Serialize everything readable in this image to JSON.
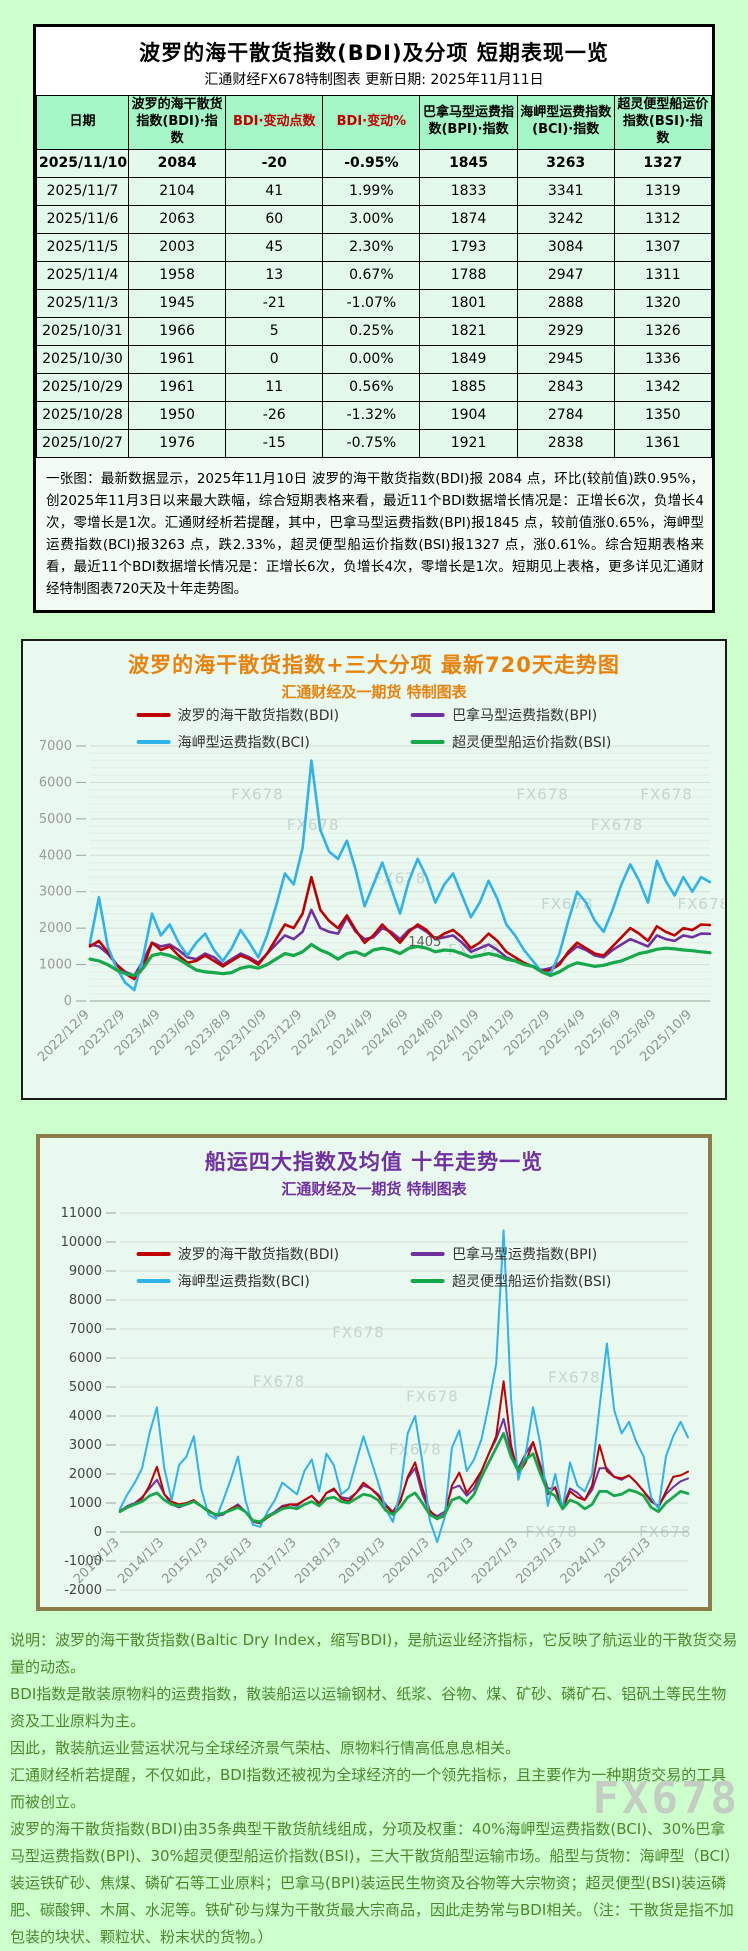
{
  "header": {
    "title": "波罗的海干散货指数(BDI)及分项 短期表现一览",
    "subtitle": "汇通财经FX678特制图表    更新日期: 2025年11月11日"
  },
  "colors": {
    "page_bg": "#ccffcc",
    "table_header_bg": "#a4f6c6",
    "red_text": "#c00000",
    "title_orange": "#e8820c",
    "title_purple": "#7030a0",
    "bdi_red": "#c00000",
    "bpi_purple": "#7030a0",
    "bci_cyan": "#2fb3e8",
    "bsi_green": "#17a84b"
  },
  "table": {
    "headers": [
      "日期",
      "波罗的海干散货指数(BDI)·指数",
      "BDI·变动点数",
      "BDI·变动%",
      "巴拿马型运费指数(BPI)·指数",
      "海岬型运费指数(BCI)·指数",
      "超灵便型船运价指数(BSI)·指数"
    ],
    "rows": [
      [
        "2025/11/10",
        "2084",
        "-20",
        "-0.95%",
        "1845",
        "3263",
        "1327"
      ],
      [
        "2025/11/7",
        "2104",
        "41",
        "1.99%",
        "1833",
        "3341",
        "1319"
      ],
      [
        "2025/11/6",
        "2063",
        "60",
        "3.00%",
        "1874",
        "3242",
        "1312"
      ],
      [
        "2025/11/5",
        "2003",
        "45",
        "2.30%",
        "1793",
        "3084",
        "1307"
      ],
      [
        "2025/11/4",
        "1958",
        "13",
        "0.67%",
        "1788",
        "2947",
        "1311"
      ],
      [
        "2025/11/3",
        "1945",
        "-21",
        "-1.07%",
        "1801",
        "2888",
        "1320"
      ],
      [
        "2025/10/31",
        "1966",
        "5",
        "0.25%",
        "1821",
        "2929",
        "1326"
      ],
      [
        "2025/10/30",
        "1961",
        "0",
        "0.00%",
        "1849",
        "2945",
        "1336"
      ],
      [
        "2025/10/29",
        "1961",
        "11",
        "0.56%",
        "1885",
        "2843",
        "1342"
      ],
      [
        "2025/10/28",
        "1950",
        "-26",
        "-1.32%",
        "1904",
        "2784",
        "1350"
      ],
      [
        "2025/10/27",
        "1976",
        "-15",
        "-0.75%",
        "1921",
        "2838",
        "1361"
      ]
    ],
    "summary": "一张图：最新数据显示，2025年11月10日 波罗的海干散货指数(BDI)报 2084 点，环比(较前值)跌0.95%，创2025年11月3日以来最大跌幅，综合短期表格来看，最近11个BDI数据增长情况是：正增长6次，负增长4次，零增长是1次。汇通财经析若提醒，其中，巴拿马型运费指数(BPI)报1845 点，较前值涨0.65%，海岬型运费指数(BCI)报3263 点，跌2.33%，超灵便型船运价指数(BSI)报1327 点，涨0.61%。综合短期表格来看，最近11个BDI数据增长情况是：正增长6次，负增长4次，零增长是1次。短期见上表格，更多详见汇通财经特制图表720天及十年走势图。"
  },
  "chart_data": [
    {
      "type": "line",
      "title": "波罗的海干散货指数+三大分项 最新720天走势图",
      "subtitle": "汇通财经及一期货 特制图表",
      "watermark": "FX678",
      "grid": true,
      "legend_position": "top",
      "ylim": [
        0,
        7000
      ],
      "ytick_step": 1000,
      "x_labels": [
        "2022/12/9",
        "2023/2/9",
        "2023/4/9",
        "2023/6/9",
        "2023/8/9",
        "2023/10/9",
        "2023/12/9",
        "2024/2/9",
        "2024/4/9",
        "2024/6/9",
        "2024/8/9",
        "2024/10/9",
        "2024/12/9",
        "2025/2/9",
        "2025/4/9",
        "2025/6/9",
        "2025/8/9",
        "2025/10/9"
      ],
      "annotations": [
        {
          "text": "1405",
          "fx": 0.54,
          "value": 1405
        }
      ],
      "series": [
        {
          "name": "波罗的海干散货指数(BDI)",
          "color": "#c00000",
          "values": [
            1500,
            1650,
            1350,
            1000,
            750,
            600,
            900,
            1600,
            1400,
            1500,
            1250,
            1050,
            1100,
            1250,
            1100,
            950,
            1100,
            1250,
            1150,
            1000,
            1300,
            1700,
            2100,
            2000,
            2400,
            3400,
            2500,
            2200,
            2000,
            2350,
            1950,
            1600,
            1800,
            2100,
            1850,
            1600,
            1900,
            2100,
            1950,
            1700,
            1850,
            1950,
            1750,
            1450,
            1600,
            1850,
            1650,
            1350,
            1200,
            1050,
            950,
            800,
            850,
            1000,
            1350,
            1600,
            1450,
            1300,
            1250,
            1500,
            1750,
            2000,
            1850,
            1650,
            2050,
            1900,
            1800,
            2000,
            1950,
            2100,
            2084
          ]
        },
        {
          "name": "巴拿马型运费指数(BPI)",
          "color": "#7030a0",
          "values": [
            1550,
            1500,
            1300,
            1000,
            800,
            700,
            1100,
            1600,
            1500,
            1550,
            1400,
            1200,
            1150,
            1300,
            1200,
            1000,
            1150,
            1300,
            1200,
            1050,
            1300,
            1550,
            1800,
            1700,
            1900,
            2500,
            2000,
            1900,
            1850,
            2300,
            1900,
            1700,
            1750,
            2000,
            1900,
            1700,
            1950,
            2050,
            1900,
            1700,
            1750,
            1800,
            1600,
            1350,
            1450,
            1550,
            1400,
            1200,
            1100,
            1000,
            950,
            850,
            900,
            1050,
            1300,
            1500,
            1400,
            1250,
            1200,
            1400,
            1550,
            1700,
            1600,
            1500,
            1800,
            1700,
            1650,
            1800,
            1750,
            1850,
            1845
          ]
        },
        {
          "name": "海岬型运费指数(BCI)",
          "color": "#2fb3e8",
          "values": [
            1600,
            2850,
            1500,
            900,
            500,
            300,
            1200,
            2400,
            1800,
            2100,
            1600,
            1250,
            1600,
            1850,
            1400,
            1100,
            1450,
            1950,
            1600,
            1200,
            1800,
            2600,
            3500,
            3200,
            4200,
            6600,
            4700,
            4100,
            3900,
            4400,
            3600,
            2600,
            3200,
            3800,
            3100,
            2400,
            3300,
            3900,
            3400,
            2700,
            3200,
            3500,
            2900,
            2300,
            2700,
            3300,
            2800,
            2100,
            1800,
            1400,
            1100,
            800,
            750,
            1300,
            2200,
            3000,
            2700,
            2200,
            1900,
            2500,
            3200,
            3750,
            3300,
            2700,
            3850,
            3300,
            2900,
            3400,
            3000,
            3400,
            3263
          ]
        },
        {
          "name": "超灵便型船运价指数(BSI)",
          "color": "#17a84b",
          "values": [
            1150,
            1100,
            1000,
            850,
            750,
            700,
            900,
            1250,
            1300,
            1250,
            1150,
            1000,
            850,
            800,
            780,
            750,
            780,
            900,
            950,
            900,
            1000,
            1150,
            1300,
            1250,
            1350,
            1550,
            1400,
            1300,
            1150,
            1300,
            1350,
            1250,
            1400,
            1450,
            1400,
            1300,
            1450,
            1500,
            1450,
            1350,
            1400,
            1380,
            1300,
            1200,
            1250,
            1300,
            1250,
            1150,
            1100,
            1000,
            950,
            800,
            700,
            800,
            950,
            1050,
            1000,
            950,
            980,
            1050,
            1100,
            1200,
            1300,
            1350,
            1420,
            1450,
            1430,
            1400,
            1380,
            1350,
            1327
          ]
        }
      ]
    },
    {
      "type": "line",
      "title": "船运四大指数及均值 十年走势一览",
      "subtitle": "汇通财经及一期货 特制图表",
      "watermark": "FX678",
      "grid": true,
      "legend_position": "top",
      "ylim": [
        -2000,
        11000
      ],
      "ytick_step": 1000,
      "x_labels": [
        "2013/1/3",
        "2014/1/3",
        "2015/1/3",
        "2016/1/3",
        "2017/1/3",
        "2018/1/3",
        "2019/1/3",
        "2020/1/3",
        "2021/1/3",
        "2022/1/3",
        "2023/1/3",
        "2024/1/3",
        "2025/1/3"
      ],
      "annotations": [],
      "series": [
        {
          "name": "波罗的海干散货指数(BDI)",
          "color": "#c00000",
          "values": [
            750,
            850,
            950,
            1150,
            1600,
            2250,
            1300,
            1050,
            950,
            1000,
            1100,
            900,
            750,
            600,
            650,
            800,
            900,
            700,
            400,
            300,
            500,
            650,
            850,
            950,
            950,
            1100,
            1250,
            950,
            1350,
            1500,
            1150,
            1050,
            1350,
            1700,
            1500,
            1250,
            900,
            650,
            1050,
            1900,
            2400,
            1500,
            750,
            450,
            550,
            1600,
            2050,
            1350,
            1700,
            2100,
            2700,
            3300,
            5200,
            3000,
            2000,
            2400,
            3100,
            2200,
            1300,
            1550,
            800,
            1400,
            1200,
            1100,
            1600,
            3000,
            2100,
            1900,
            1850,
            1950,
            1700,
            1400,
            1100,
            850,
            1400,
            1900,
            1950,
            2084
          ]
        },
        {
          "name": "巴拿马型运费指数(BPI)",
          "color": "#7030a0",
          "values": [
            700,
            900,
            1000,
            1200,
            1500,
            1800,
            1300,
            950,
            850,
            950,
            1100,
            900,
            750,
            550,
            600,
            800,
            950,
            700,
            350,
            300,
            550,
            700,
            900,
            950,
            900,
            1100,
            1250,
            1000,
            1350,
            1450,
            1200,
            1150,
            1350,
            1600,
            1500,
            1300,
            950,
            700,
            1100,
            1850,
            2200,
            1300,
            700,
            550,
            700,
            1500,
            1600,
            1250,
            1500,
            2100,
            2700,
            3200,
            3900,
            2800,
            2200,
            2700,
            3100,
            2300,
            1500,
            1500,
            850,
            1500,
            1350,
            1100,
            1450,
            2200,
            2200,
            1900,
            1800,
            1950,
            1700,
            1400,
            1050,
            900,
            1300,
            1550,
            1750,
            1845
          ]
        },
        {
          "name": "海岬型运费指数(BCI)",
          "color": "#2fb3e8",
          "values": [
            800,
            1300,
            1700,
            2200,
            3400,
            4300,
            2200,
            1100,
            2300,
            2600,
            3300,
            1500,
            600,
            450,
            1100,
            1800,
            2600,
            1100,
            250,
            180,
            700,
            1100,
            1700,
            1500,
            1300,
            2100,
            2500,
            1400,
            2700,
            2300,
            1300,
            1500,
            2400,
            3300,
            2500,
            1700,
            800,
            350,
            1400,
            3400,
            4000,
            2400,
            400,
            -350,
            500,
            2900,
            3500,
            2100,
            2500,
            3200,
            4400,
            5800,
            10400,
            4600,
            1800,
            2700,
            4300,
            3000,
            900,
            2000,
            800,
            2400,
            1600,
            1400,
            2000,
            4300,
            6500,
            4200,
            3400,
            3800,
            3100,
            2600,
            1200,
            800,
            2600,
            3300,
            3800,
            3263
          ]
        },
        {
          "name": "超灵便型船运价指数(BSI)",
          "color": "#17a84b",
          "values": [
            700,
            850,
            950,
            1050,
            1250,
            1350,
            1100,
            950,
            900,
            950,
            1050,
            900,
            700,
            600,
            650,
            750,
            850,
            700,
            400,
            350,
            550,
            650,
            800,
            850,
            800,
            950,
            1050,
            900,
            1150,
            1200,
            1050,
            1000,
            1150,
            1300,
            1250,
            1100,
            750,
            600,
            850,
            1200,
            1350,
            1000,
            600,
            450,
            600,
            1100,
            1200,
            1000,
            1300,
            1900,
            2400,
            2900,
            3400,
            2600,
            2100,
            2500,
            2700,
            2000,
            1400,
            1250,
            800,
            1100,
            1000,
            800,
            950,
            1400,
            1400,
            1250,
            1300,
            1450,
            1380,
            1250,
            850,
            700,
            1000,
            1200,
            1400,
            1327
          ]
        }
      ]
    }
  ],
  "footer": {
    "lines": [
      "说明：波罗的海干散货指数(Baltic Dry Index，缩写BDI)，是航运业经济指标，它反映了航运业的干散货交易量的动态。",
      "BDI指数是散装原物料的运费指数，散装船运以运输钢材、纸浆、谷物、煤、矿砂、磷矿石、铝矾土等民生物资及工业原料为主。",
      "因此，散装航运业营运状况与全球经济景气荣枯、原物料行情高低息息相关。",
      "汇通财经析若提醒，不仅如此，BDI指数还被视为全球经济的一个领先指标，且主要作为一种期货交易的工具而被创立。",
      "波罗的海干散货指数(BDI)由35条典型干散货航线组成，分项及权重：40%海岬型运费指数(BCI)、30%巴拿马型运费指数(BPI)、30%超灵便型船运价指数(BSI)，三大干散货船型运输市场。船型与货物：海岬型（BCI）装运铁矿砂、焦煤、磷矿石等工业原料；巴拿马(BPI)装运民生物资及谷物等大宗物资；超灵便型(BSI)装运磷肥、碳酸钾、木屑、水泥等。铁矿砂与煤为干散货最大宗商品，因此走势常与BDI相关。（注：干散货是指不加包装的块状、颗粒状、粉末状的货物。）"
    ],
    "watermark": "FX678"
  }
}
